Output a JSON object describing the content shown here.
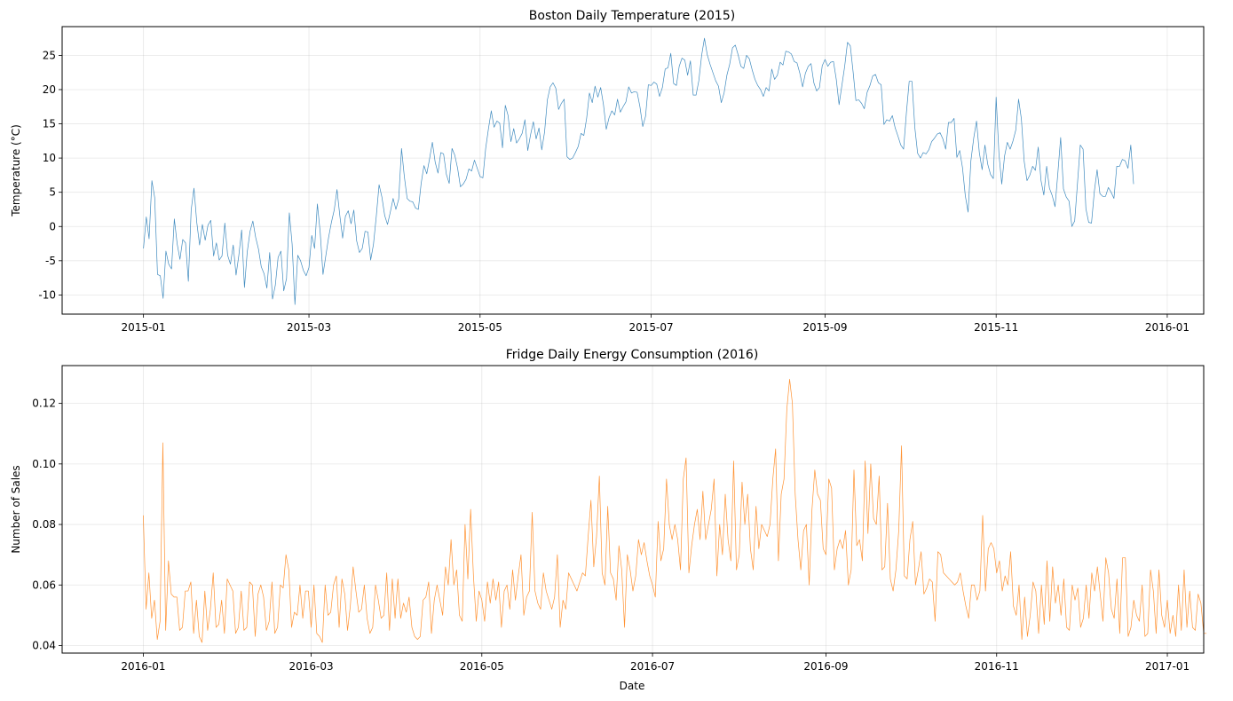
{
  "chart_data": [
    {
      "type": "line",
      "title": "Boston Daily Temperature (2015)",
      "xlabel": "",
      "ylabel": "Temperature (°C)",
      "x_start": "2015-01-01",
      "x_end": "2015-12-16",
      "xlim": [
        "2014-12-03",
        "2016-01-14"
      ],
      "ylim": [
        -12.8,
        29.2
      ],
      "x_ticks": [
        "2015-01",
        "2015-03",
        "2015-05",
        "2015-07",
        "2015-09",
        "2015-11",
        "2016-01"
      ],
      "y_ticks": [
        -10,
        -5,
        0,
        5,
        10,
        15,
        20,
        25
      ],
      "grid": true,
      "color": "#1f77b4",
      "series": [
        {
          "values": [
            -3.2,
            1.4,
            -1.8,
            6.7,
            4.2,
            -7,
            -7.2,
            -10.5,
            -3.6,
            -5.5,
            -6.2,
            1.1,
            -2.5,
            -4.8,
            -1.9,
            -2.4,
            -8,
            2.4,
            5.6,
            0.6,
            -2.7,
            0.3,
            -2,
            0.2,
            0.9,
            -4.3,
            -2.4,
            -4.9,
            -4.3,
            0.5,
            -4.2,
            -5.5,
            -2.7,
            -7.1,
            -4.2,
            -0.5,
            -8.9,
            -3.7,
            -0.7,
            0.8,
            -1.6,
            -3.3,
            -5.9,
            -6.9,
            -9,
            -3.8,
            -10.6,
            -8.6,
            -4.5,
            -3.6,
            -9.4,
            -7.6,
            2,
            -2.6,
            -11.4,
            -4.2,
            -5,
            -6.4,
            -7.2,
            -6,
            -1.3,
            -3.2,
            3.3,
            -0.8,
            -7,
            -4.3,
            -1.6,
            0.6,
            2.4,
            5.4,
            1.6,
            -1.7,
            1.5,
            2.3,
            0.4,
            2.4,
            -2.1,
            -3.8,
            -3.2,
            -0.7,
            -0.8,
            -4.9,
            -2.6,
            1.5,
            6.1,
            4.3,
            1.6,
            0.3,
            2.1,
            4.1,
            2.5,
            4,
            11.4,
            7.3,
            4.1,
            3.7,
            3.6,
            2.7,
            2.5,
            6.3,
            8.9,
            7.7,
            9.9,
            12.3,
            9.4,
            7.8,
            10.8,
            10.6,
            7.6,
            6.3,
            11.4,
            10.4,
            8.5,
            5.8,
            6.2,
            6.9,
            8.4,
            8.1,
            9.7,
            8.5,
            7.3,
            7.1,
            11.4,
            14.3,
            16.9,
            14.5,
            15.4,
            15.1,
            11.5,
            17.7,
            16.2,
            12.4,
            14.3,
            12.2,
            12.8,
            13.6,
            15.6,
            11.1,
            13.4,
            15.3,
            12.8,
            14.4,
            11.2,
            13.8,
            18.5,
            20.4,
            21,
            20.2,
            17.1,
            18,
            18.6,
            10.2,
            9.8,
            10,
            10.8,
            11.7,
            13.6,
            13.3,
            15.8,
            19.5,
            18.1,
            20.5,
            18.9,
            20.3,
            17.8,
            14.2,
            15.9,
            16.9,
            16.3,
            18.6,
            16.7,
            17.5,
            18.2,
            20.4,
            19.5,
            19.7,
            19.6,
            17.5,
            14.6,
            16.1,
            20.7,
            20.6,
            21.1,
            20.8,
            19,
            20.3,
            23,
            23.2,
            25.3,
            20.9,
            20.6,
            23.4,
            24.6,
            24.3,
            22.1,
            24.2,
            19.2,
            19.2,
            21.3,
            25,
            27.5,
            25.1,
            23.7,
            22.5,
            21.3,
            20.5,
            18.1,
            19.5,
            22.1,
            23.7,
            26.1,
            26.5,
            25.1,
            23.4,
            23.1,
            25,
            24.5,
            22.9,
            21.5,
            20.6,
            20,
            19,
            20.3,
            19.8,
            23,
            21.5,
            22.1,
            24,
            23.6,
            25.6,
            25.5,
            25.2,
            24.1,
            23.9,
            22.4,
            20.4,
            22.4,
            23.4,
            23.8,
            21,
            19.8,
            20.3,
            23.5,
            24.4,
            23.4,
            24,
            24.1,
            21.5,
            17.8,
            20.6,
            23.4,
            26.9,
            26.4,
            22.6,
            18.4,
            18.5,
            18,
            17.2,
            19.6,
            20.6,
            22,
            22.2,
            21,
            20.7,
            14.9,
            15.6,
            15.4,
            16.2,
            14.4,
            13.2,
            11.9,
            11.3,
            16.6,
            21.2,
            21.2,
            14.5,
            10.7,
            10,
            10.8,
            10.6,
            11.2,
            12.4,
            12.9,
            13.5,
            13.7,
            12.8,
            11.3,
            15.2,
            15.2,
            15.8,
            10.1,
            11.1,
            8.6,
            4.5,
            2.1,
            9.6,
            12.9,
            15.4,
            10.8,
            8.3,
            11.9,
            9.1,
            7.6,
            7,
            18.9,
            10.6,
            6.2,
            10.3,
            12.3,
            11.3,
            12.5,
            14.1,
            18.6,
            15.7,
            9.5,
            6.7,
            7.5,
            8.8,
            8.2,
            11.6,
            6.7,
            4.6,
            8.8,
            5.6,
            4.5,
            2.9,
            7.8,
            13,
            5.5,
            4.3,
            3.7,
            0,
            0.8,
            6.3,
            11.9,
            11.3,
            2.6,
            0.6,
            0.5,
            5.1,
            8.3,
            4.8,
            4.4,
            4.4,
            5.7,
            5,
            4.1,
            8.8,
            8.8,
            9.8,
            9.6,
            8.5,
            11.9,
            6.2
          ]
        }
      ]
    },
    {
      "type": "line",
      "title": "Fridge Daily Energy Consumption (2016)",
      "xlabel": "Date",
      "ylabel": "Number of Sales",
      "x_start": "2016-01-01",
      "x_end": "2016-12-16",
      "xlim": [
        "2015-12-03",
        "2017-01-14"
      ],
      "ylim": [
        0.0375,
        0.1325
      ],
      "x_ticks": [
        "2016-01",
        "2016-03",
        "2016-05",
        "2016-07",
        "2016-09",
        "2016-11",
        "2017-01"
      ],
      "y_ticks": [
        0.04,
        0.06,
        0.08,
        0.1,
        0.12
      ],
      "grid": true,
      "color": "#ff7f0e",
      "series": [
        {
          "values": [
            0.083,
            0.052,
            0.064,
            0.049,
            0.055,
            0.042,
            0.048,
            0.107,
            0.045,
            0.068,
            0.057,
            0.056,
            0.056,
            0.045,
            0.046,
            0.058,
            0.058,
            0.061,
            0.044,
            0.055,
            0.043,
            0.041,
            0.058,
            0.045,
            0.052,
            0.064,
            0.046,
            0.047,
            0.055,
            0.044,
            0.062,
            0.06,
            0.058,
            0.044,
            0.046,
            0.058,
            0.045,
            0.046,
            0.061,
            0.06,
            0.043,
            0.057,
            0.06,
            0.056,
            0.045,
            0.048,
            0.061,
            0.044,
            0.046,
            0.06,
            0.059,
            0.07,
            0.065,
            0.046,
            0.051,
            0.05,
            0.06,
            0.049,
            0.058,
            0.058,
            0.046,
            0.06,
            0.044,
            0.043,
            0.041,
            0.06,
            0.05,
            0.051,
            0.06,
            0.063,
            0.046,
            0.062,
            0.057,
            0.045,
            0.053,
            0.066,
            0.058,
            0.051,
            0.052,
            0.06,
            0.049,
            0.044,
            0.046,
            0.06,
            0.055,
            0.049,
            0.05,
            0.064,
            0.045,
            0.062,
            0.049,
            0.062,
            0.049,
            0.054,
            0.051,
            0.056,
            0.046,
            0.043,
            0.042,
            0.043,
            0.055,
            0.056,
            0.061,
            0.044,
            0.055,
            0.06,
            0.055,
            0.05,
            0.066,
            0.06,
            0.075,
            0.06,
            0.065,
            0.05,
            0.048,
            0.08,
            0.062,
            0.085,
            0.063,
            0.048,
            0.058,
            0.055,
            0.048,
            0.061,
            0.054,
            0.062,
            0.055,
            0.061,
            0.046,
            0.058,
            0.06,
            0.052,
            0.065,
            0.055,
            0.063,
            0.07,
            0.05,
            0.056,
            0.058,
            0.084,
            0.058,
            0.054,
            0.052,
            0.064,
            0.058,
            0.055,
            0.052,
            0.056,
            0.07,
            0.046,
            0.055,
            0.052,
            0.064,
            0.062,
            0.06,
            0.058,
            0.061,
            0.064,
            0.063,
            0.076,
            0.088,
            0.066,
            0.076,
            0.096,
            0.064,
            0.06,
            0.086,
            0.064,
            0.062,
            0.055,
            0.073,
            0.065,
            0.046,
            0.07,
            0.065,
            0.058,
            0.063,
            0.075,
            0.07,
            0.074,
            0.068,
            0.063,
            0.06,
            0.056,
            0.081,
            0.068,
            0.072,
            0.095,
            0.08,
            0.075,
            0.08,
            0.075,
            0.065,
            0.095,
            0.102,
            0.064,
            0.073,
            0.08,
            0.085,
            0.075,
            0.091,
            0.075,
            0.08,
            0.085,
            0.095,
            0.063,
            0.08,
            0.07,
            0.09,
            0.075,
            0.068,
            0.101,
            0.065,
            0.07,
            0.094,
            0.08,
            0.09,
            0.072,
            0.065,
            0.086,
            0.072,
            0.08,
            0.078,
            0.076,
            0.08,
            0.095,
            0.105,
            0.068,
            0.09,
            0.095,
            0.118,
            0.128,
            0.12,
            0.09,
            0.075,
            0.065,
            0.078,
            0.08,
            0.06,
            0.085,
            0.098,
            0.09,
            0.088,
            0.072,
            0.07,
            0.095,
            0.092,
            0.065,
            0.072,
            0.075,
            0.072,
            0.078,
            0.06,
            0.065,
            0.098,
            0.073,
            0.075,
            0.068,
            0.101,
            0.077,
            0.1,
            0.082,
            0.08,
            0.096,
            0.065,
            0.066,
            0.087,
            0.062,
            0.058,
            0.065,
            0.078,
            0.106,
            0.063,
            0.062,
            0.075,
            0.081,
            0.06,
            0.065,
            0.071,
            0.057,
            0.059,
            0.062,
            0.061,
            0.048,
            0.071,
            0.07,
            0.064,
            0.063,
            0.062,
            0.061,
            0.06,
            0.061,
            0.064,
            0.058,
            0.053,
            0.049,
            0.06,
            0.06,
            0.055,
            0.058,
            0.083,
            0.058,
            0.072,
            0.074,
            0.072,
            0.064,
            0.068,
            0.058,
            0.063,
            0.06,
            0.071,
            0.053,
            0.05,
            0.06,
            0.042,
            0.056,
            0.043,
            0.05,
            0.061,
            0.058,
            0.044,
            0.06,
            0.047,
            0.068,
            0.048,
            0.066,
            0.054,
            0.06,
            0.05,
            0.062,
            0.046,
            0.045,
            0.06,
            0.055,
            0.059,
            0.046,
            0.049,
            0.06,
            0.049,
            0.064,
            0.058,
            0.066,
            0.057,
            0.048,
            0.069,
            0.064,
            0.052,
            0.049,
            0.062,
            0.044,
            0.069,
            0.069,
            0.043,
            0.046,
            0.055,
            0.05,
            0.048,
            0.06,
            0.043,
            0.044,
            0.065,
            0.058,
            0.044,
            0.065,
            0.05,
            0.046,
            0.055,
            0.044,
            0.05,
            0.043,
            0.06,
            0.045,
            0.065,
            0.046,
            0.058,
            0.046,
            0.045,
            0.057,
            0.054,
            0.044,
            0.044
          ]
        }
      ]
    }
  ]
}
